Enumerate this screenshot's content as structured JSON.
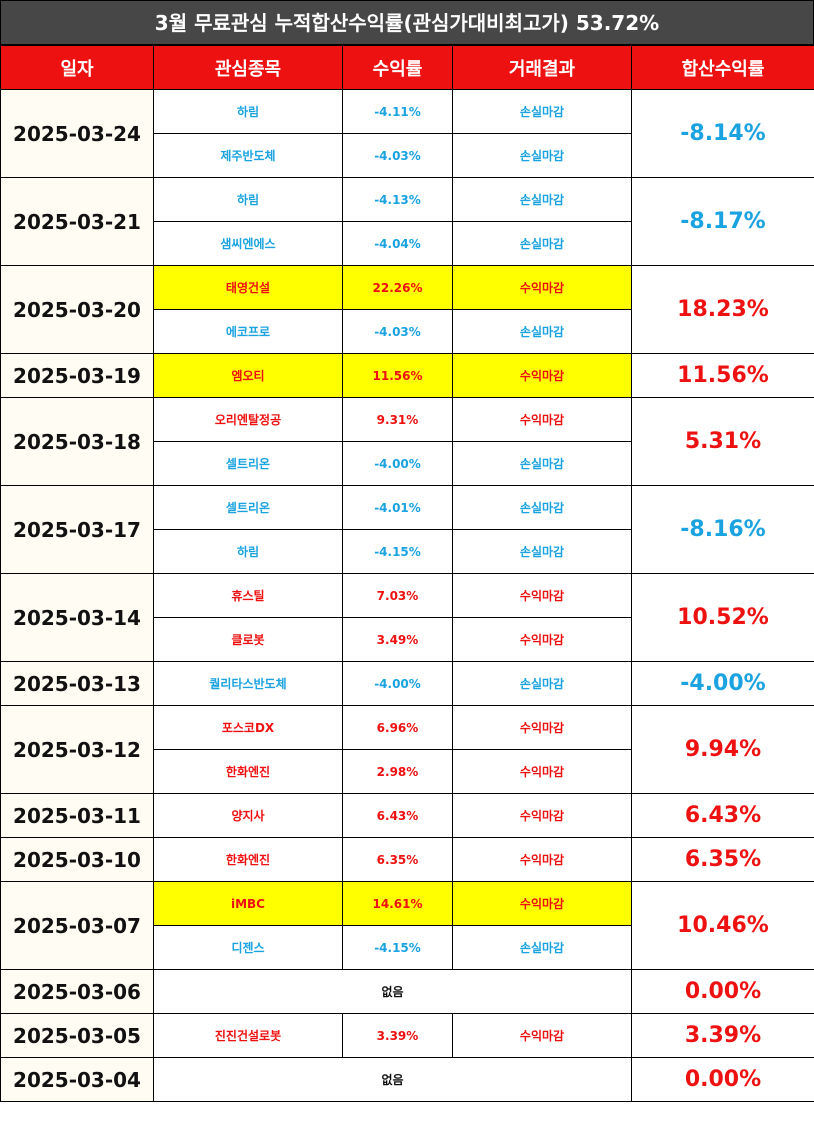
{
  "title": "3월 무료관심 누적합산수익률(관심가대비최고가) 53.72%",
  "header": [
    "일자",
    "관심종목",
    "수익률",
    "거래결과",
    "합산수익률"
  ],
  "colors": {
    "profit": "#ee1111",
    "loss": "#1aa3e0",
    "highlight": "#ffff00"
  },
  "rows": [
    {
      "date": "2025-03-24",
      "items": [
        {
          "name": "하림",
          "return": "-4.11%",
          "result": "손실마감",
          "tone": "loss"
        },
        {
          "name": "제주반도체",
          "return": "-4.03%",
          "result": "손실마감",
          "tone": "loss"
        }
      ],
      "total": "-8.14%",
      "tone": "loss"
    },
    {
      "date": "2025-03-21",
      "items": [
        {
          "name": "하림",
          "return": "-4.13%",
          "result": "손실마감",
          "tone": "loss"
        },
        {
          "name": "샘씨엔에스",
          "return": "-4.04%",
          "result": "손실마감",
          "tone": "loss"
        }
      ],
      "total": "-8.17%",
      "tone": "loss"
    },
    {
      "date": "2025-03-20",
      "items": [
        {
          "name": "태영건설",
          "return": "22.26%",
          "result": "수익마감",
          "tone": "profit",
          "highlight": true
        },
        {
          "name": "에코프로",
          "return": "-4.03%",
          "result": "손실마감",
          "tone": "loss"
        }
      ],
      "total": "18.23%",
      "tone": "profit"
    },
    {
      "date": "2025-03-19",
      "items": [
        {
          "name": "엠오티",
          "return": "11.56%",
          "result": "수익마감",
          "tone": "profit",
          "highlight": true
        }
      ],
      "total": "11.56%",
      "tone": "profit"
    },
    {
      "date": "2025-03-18",
      "items": [
        {
          "name": "오리엔탈정공",
          "return": "9.31%",
          "result": "수익마감",
          "tone": "profit"
        },
        {
          "name": "셀트리온",
          "return": "-4.00%",
          "result": "손실마감",
          "tone": "loss"
        }
      ],
      "total": "5.31%",
      "tone": "profit"
    },
    {
      "date": "2025-03-17",
      "items": [
        {
          "name": "셀트리온",
          "return": "-4.01%",
          "result": "손실마감",
          "tone": "loss"
        },
        {
          "name": "하림",
          "return": "-4.15%",
          "result": "손실마감",
          "tone": "loss"
        }
      ],
      "total": "-8.16%",
      "tone": "loss"
    },
    {
      "date": "2025-03-14",
      "items": [
        {
          "name": "휴스틸",
          "return": "7.03%",
          "result": "수익마감",
          "tone": "profit"
        },
        {
          "name": "클로봇",
          "return": "3.49%",
          "result": "수익마감",
          "tone": "profit"
        }
      ],
      "total": "10.52%",
      "tone": "profit"
    },
    {
      "date": "2025-03-13",
      "items": [
        {
          "name": "퀄리타스반도체",
          "return": "-4.00%",
          "result": "손실마감",
          "tone": "loss"
        }
      ],
      "total": "-4.00%",
      "tone": "loss"
    },
    {
      "date": "2025-03-12",
      "items": [
        {
          "name": "포스코DX",
          "return": "6.96%",
          "result": "수익마감",
          "tone": "profit"
        },
        {
          "name": "한화엔진",
          "return": "2.98%",
          "result": "수익마감",
          "tone": "profit"
        }
      ],
      "total": "9.94%",
      "tone": "profit"
    },
    {
      "date": "2025-03-11",
      "items": [
        {
          "name": "양지사",
          "return": "6.43%",
          "result": "수익마감",
          "tone": "profit"
        }
      ],
      "total": "6.43%",
      "tone": "profit"
    },
    {
      "date": "2025-03-10",
      "items": [
        {
          "name": "한화엔진",
          "return": "6.35%",
          "result": "수익마감",
          "tone": "profit"
        }
      ],
      "total": "6.35%",
      "tone": "profit"
    },
    {
      "date": "2025-03-07",
      "items": [
        {
          "name": "iMBC",
          "return": "14.61%",
          "result": "수익마감",
          "tone": "profit",
          "highlight": true
        },
        {
          "name": "디젠스",
          "return": "-4.15%",
          "result": "손실마감",
          "tone": "loss"
        }
      ],
      "total": "10.46%",
      "tone": "profit"
    },
    {
      "date": "2025-03-06",
      "note": "없음",
      "total": "0.00%",
      "tone": "profit"
    },
    {
      "date": "2025-03-05",
      "items": [
        {
          "name": "진진건설로봇",
          "return": "3.39%",
          "result": "수익마감",
          "tone": "profit"
        }
      ],
      "total": "3.39%",
      "tone": "profit"
    },
    {
      "date": "2025-03-04",
      "note": "없음",
      "total": "0.00%",
      "tone": "profit"
    }
  ]
}
